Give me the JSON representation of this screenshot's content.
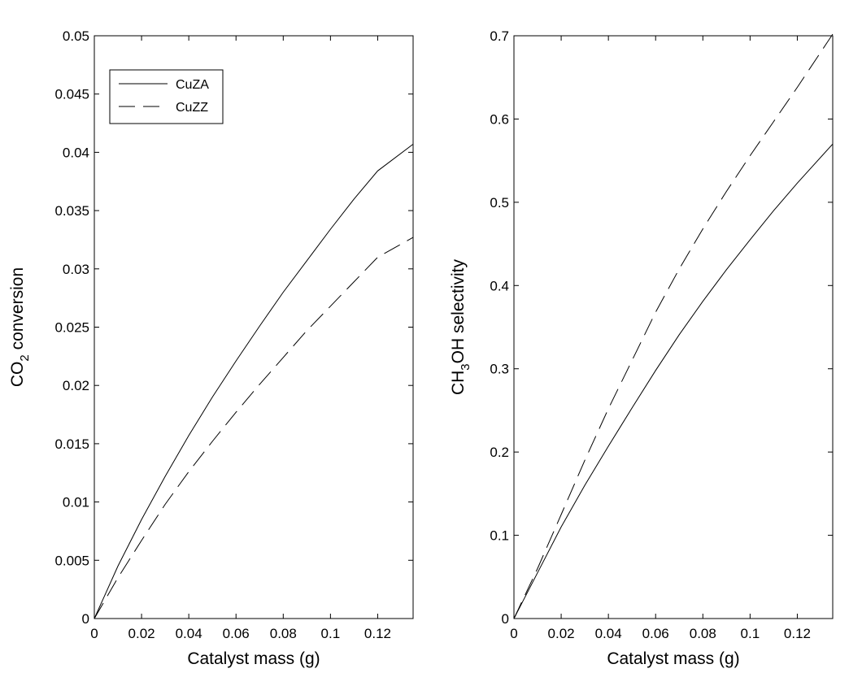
{
  "chart_data": [
    {
      "type": "line",
      "xlabel": "Catalyst mass (g)",
      "ylabel": "CO₂ conversion",
      "ylabel_main": "CO",
      "ylabel_sub": "2",
      "ylabel_rest": " conversion",
      "xlim": [
        0,
        0.135
      ],
      "ylim": [
        0,
        0.05
      ],
      "xticks": [
        0,
        0.02,
        0.04,
        0.06,
        0.08,
        0.1,
        0.12
      ],
      "xtick_labels": [
        "0",
        "0.02",
        "0.04",
        "0.06",
        "0.08",
        "0.1",
        "0.12"
      ],
      "yticks": [
        0,
        0.005,
        0.01,
        0.015,
        0.02,
        0.025,
        0.03,
        0.035,
        0.04,
        0.045,
        0.05
      ],
      "ytick_labels": [
        "0",
        "0.005",
        "0.01",
        "0.015",
        "0.02",
        "0.025",
        "0.03",
        "0.035",
        "0.04",
        "0.045",
        "0.05"
      ],
      "grid": false,
      "legend": {
        "position": "top-left",
        "entries": [
          "CuZA",
          "CuZZ"
        ]
      },
      "series": [
        {
          "name": "CuZA",
          "style": "solid",
          "x": [
            0,
            0.01,
            0.02,
            0.03,
            0.04,
            0.05,
            0.06,
            0.07,
            0.08,
            0.09,
            0.1,
            0.11,
            0.12,
            0.135
          ],
          "y": [
            0,
            0.0045,
            0.0085,
            0.0122,
            0.0157,
            0.019,
            0.0221,
            0.0251,
            0.028,
            0.0307,
            0.0334,
            0.036,
            0.0384,
            0.0407
          ]
        },
        {
          "name": "CuZZ",
          "style": "dashed",
          "x": [
            0,
            0.01,
            0.02,
            0.03,
            0.04,
            0.05,
            0.06,
            0.07,
            0.08,
            0.09,
            0.1,
            0.11,
            0.12,
            0.135
          ],
          "y": [
            0,
            0.0035,
            0.0067,
            0.0098,
            0.0126,
            0.0152,
            0.0177,
            0.0201,
            0.0224,
            0.0247,
            0.0268,
            0.0289,
            0.031,
            0.0327
          ]
        }
      ]
    },
    {
      "type": "line",
      "xlabel": "Catalyst mass (g)",
      "ylabel": "CH₃OH selectivity",
      "ylabel_main": "CH",
      "ylabel_sub": "3",
      "ylabel_rest": "OH selectivity",
      "xlim": [
        0,
        0.135
      ],
      "ylim": [
        0,
        0.7
      ],
      "xticks": [
        0,
        0.02,
        0.04,
        0.06,
        0.08,
        0.1,
        0.12
      ],
      "xtick_labels": [
        "0",
        "0.02",
        "0.04",
        "0.06",
        "0.08",
        "0.1",
        "0.12"
      ],
      "yticks": [
        0,
        0.1,
        0.2,
        0.3,
        0.4,
        0.5,
        0.6,
        0.7
      ],
      "ytick_labels": [
        "0",
        "0.1",
        "0.2",
        "0.3",
        "0.4",
        "0.5",
        "0.6",
        "0.7"
      ],
      "grid": false,
      "series": [
        {
          "name": "CuZA",
          "style": "solid",
          "x": [
            0,
            0.01,
            0.02,
            0.03,
            0.04,
            0.05,
            0.06,
            0.07,
            0.08,
            0.09,
            0.1,
            0.11,
            0.12,
            0.135
          ],
          "y": [
            0,
            0.055,
            0.11,
            0.16,
            0.207,
            0.253,
            0.298,
            0.341,
            0.381,
            0.419,
            0.455,
            0.49,
            0.523,
            0.57
          ]
        },
        {
          "name": "CuZZ",
          "style": "dashed",
          "x": [
            0,
            0.01,
            0.02,
            0.03,
            0.04,
            0.05,
            0.06,
            0.07,
            0.08,
            0.09,
            0.1,
            0.11,
            0.12,
            0.135
          ],
          "y": [
            0,
            0.06,
            0.125,
            0.19,
            0.252,
            0.31,
            0.368,
            0.42,
            0.468,
            0.513,
            0.556,
            0.597,
            0.638,
            0.702
          ]
        }
      ]
    }
  ]
}
